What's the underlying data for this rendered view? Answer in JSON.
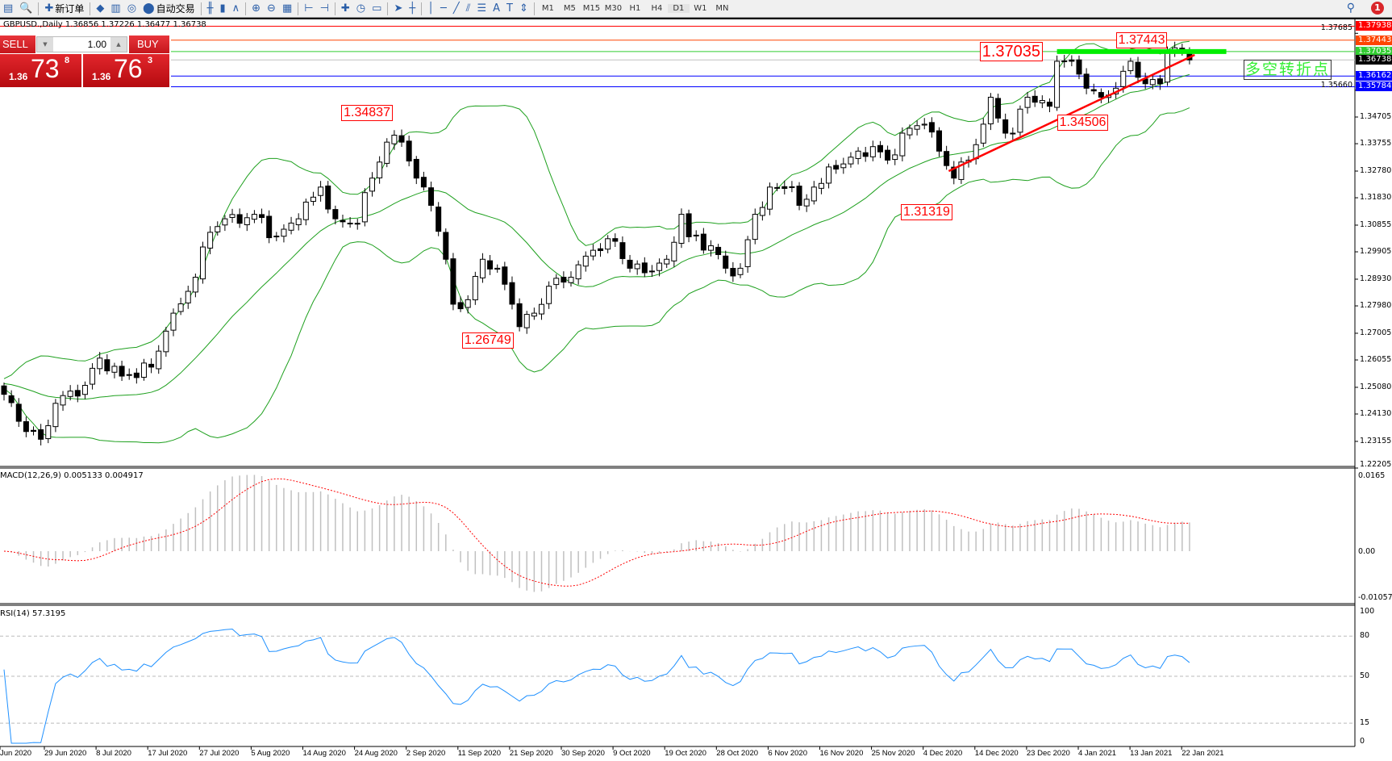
{
  "toolbar": {
    "items": [
      {
        "name": "new-chart",
        "glyph": "▤"
      },
      {
        "name": "navigator",
        "glyph": "🔍"
      },
      {
        "name": "new-order",
        "glyph": "✚",
        "label": "新订单"
      },
      {
        "name": "strategy-tester",
        "glyph": "◆"
      },
      {
        "name": "history-center",
        "glyph": "▥"
      },
      {
        "name": "market-watch",
        "glyph": "◎"
      },
      {
        "name": "auto-trading",
        "glyph": "⬤",
        "label": "自动交易"
      },
      {
        "name": "bar-chart",
        "glyph": "╫"
      },
      {
        "name": "candlesticks",
        "glyph": "▮"
      },
      {
        "name": "line-chart",
        "glyph": "∧"
      },
      {
        "name": "zoom-in",
        "glyph": "⊕"
      },
      {
        "name": "zoom-out",
        "glyph": "⊖"
      },
      {
        "name": "tile-windows",
        "glyph": "▦"
      },
      {
        "name": "auto-scroll",
        "glyph": "⊢"
      },
      {
        "name": "chart-shift",
        "glyph": "⊣"
      },
      {
        "name": "indicators",
        "glyph": "✚"
      },
      {
        "name": "periods",
        "glyph": "◷"
      },
      {
        "name": "templates",
        "glyph": "▭"
      },
      {
        "name": "cursor",
        "glyph": "➤"
      },
      {
        "name": "crosshair",
        "glyph": "┼"
      },
      {
        "name": "vertical-line",
        "glyph": "│"
      },
      {
        "name": "horizontal-line",
        "glyph": "─"
      },
      {
        "name": "trendline",
        "glyph": "╱"
      },
      {
        "name": "equidistant-channel",
        "glyph": "⫽"
      },
      {
        "name": "fibonacci",
        "glyph": "☰"
      },
      {
        "name": "text",
        "glyph": "A"
      },
      {
        "name": "text-label",
        "glyph": "T"
      },
      {
        "name": "arrows",
        "glyph": "⇕"
      }
    ],
    "timeframes": [
      "M1",
      "M5",
      "M15",
      "M30",
      "H1",
      "H4",
      "D1",
      "W1",
      "MN"
    ],
    "active_timeframe": "D1",
    "notifications": "1"
  },
  "chart": {
    "header": "GBPUSD.,Daily  1.36856 1.37226 1.36477 1.36738",
    "trade": {
      "sell": "SELL",
      "buy": "BUY",
      "lot": "1.00",
      "sell_small": "1.36",
      "sell_big": "73",
      "sell_sup": "8",
      "buy_small": "1.36",
      "buy_big": "76",
      "buy_sup": "3"
    },
    "price_ticks": [
      "1.37685",
      "1.35660",
      "1.34705",
      "1.33755",
      "1.32780",
      "1.31830",
      "1.30855",
      "1.29905",
      "1.28930",
      "1.27980",
      "1.27005",
      "1.26055",
      "1.25080",
      "1.24130",
      "1.23155",
      "1.22205"
    ],
    "hlines": [
      {
        "price": "1.37938",
        "color": "#ff0000",
        "full": true
      },
      {
        "price": "1.37443",
        "color": "#ff4500"
      },
      {
        "price": "1.37035",
        "color": "#32cd32"
      },
      {
        "price": "1.36738",
        "color": "#000000",
        "line": "#c0c0c0"
      },
      {
        "price": "1.36162",
        "color": "#0000ff"
      },
      {
        "price": "1.35784",
        "color": "#0000ff"
      }
    ],
    "annotations": [
      {
        "text": "1.34837",
        "bar": 45.8
      },
      {
        "text": "1.26749",
        "bar": 62.2
      },
      {
        "text": "1.31319",
        "bar": 121.8
      },
      {
        "text": "1.34506",
        "bar": 143
      },
      {
        "text": "1.37035",
        "bar": 132.5,
        "big": true
      },
      {
        "text": "1.37443",
        "bar": 151
      }
    ],
    "trendline": {
      "color": "#ff0000",
      "from": {
        "bar": 128.3,
        "price": 1.3278
      },
      "to": {
        "bar": 161.7,
        "price": 1.36918
      }
    },
    "green_level": {
      "color": "#00ee00",
      "from_bar": 143,
      "to_bar": 166,
      "price": 1.37035
    },
    "pivot_text": "多空转折点",
    "bands_color": "#1ea01e",
    "price_waypoints": [
      [
        0,
        1.2483
      ],
      [
        2,
        1.2387
      ],
      [
        5,
        1.2323
      ],
      [
        7,
        1.2451
      ],
      [
        11,
        1.2515
      ],
      [
        13,
        1.2612
      ],
      [
        16,
        1.2548
      ],
      [
        20,
        1.258
      ],
      [
        22,
        1.2708
      ],
      [
        23,
        1.2772
      ],
      [
        26,
        1.29
      ],
      [
        28,
        1.306
      ],
      [
        30,
        1.3108
      ],
      [
        32,
        1.3092
      ],
      [
        34,
        1.3124
      ],
      [
        37,
        1.3044
      ],
      [
        40,
        1.3108
      ],
      [
        43,
        1.3221
      ],
      [
        45,
        1.3108
      ],
      [
        48,
        1.3092
      ],
      [
        50,
        1.3253
      ],
      [
        52,
        1.3381
      ],
      [
        54,
        1.3381
      ],
      [
        56,
        1.3253
      ],
      [
        58,
        1.3156
      ],
      [
        60,
        1.2964
      ],
      [
        61,
        1.2804
      ],
      [
        63,
        1.282
      ],
      [
        65,
        1.2964
      ],
      [
        67,
        1.2932
      ],
      [
        69,
        1.2804
      ],
      [
        70,
        1.2724
      ],
      [
        72,
        1.2772
      ],
      [
        74,
        1.2868
      ],
      [
        77,
        1.29
      ],
      [
        80,
        1.2996
      ],
      [
        83,
        1.3028
      ],
      [
        85,
        1.2932
      ],
      [
        87,
        1.2916
      ],
      [
        90,
        1.2964
      ],
      [
        92,
        1.3124
      ],
      [
        93,
        1.3044
      ],
      [
        96,
        1.3012
      ],
      [
        98,
        1.2932
      ],
      [
        100,
        1.2932
      ],
      [
        102,
        1.3124
      ],
      [
        104,
        1.3221
      ],
      [
        107,
        1.3221
      ],
      [
        108,
        1.3156
      ],
      [
        110,
        1.3221
      ],
      [
        113,
        1.3285
      ],
      [
        116,
        1.3349
      ],
      [
        118,
        1.3365
      ],
      [
        120,
        1.3317
      ],
      [
        122,
        1.3413
      ],
      [
        125,
        1.3445
      ],
      [
        127,
        1.3349
      ],
      [
        129,
        1.3253
      ],
      [
        131,
        1.3317
      ],
      [
        133,
        1.3445
      ],
      [
        134,
        1.3541
      ],
      [
        136,
        1.3413
      ],
      [
        137,
        1.3413
      ],
      [
        139,
        1.3541
      ],
      [
        142,
        1.3509
      ],
      [
        143,
        1.3669
      ],
      [
        145,
        1.3669
      ],
      [
        147,
        1.3573
      ],
      [
        149,
        1.3541
      ],
      [
        151,
        1.3573
      ],
      [
        153,
        1.3669
      ],
      [
        155,
        1.3589
      ],
      [
        157,
        1.3589
      ],
      [
        158,
        1.3701
      ],
      [
        159,
        1.3717
      ],
      [
        161,
        1.36738
      ]
    ]
  },
  "macd": {
    "header": "MACD(12,26,9) 0.005133 0.004917",
    "ticks": [
      "0.0165",
      "0.00",
      "-0.010571"
    ],
    "signal_color": "#ff0000",
    "hist_color": "#c0c0c0"
  },
  "rsi": {
    "header": "RSI(14) 57.3195",
    "ticks": [
      "100",
      "80",
      "50",
      "15",
      "0"
    ],
    "line_color": "#1e90ff"
  },
  "dates": [
    "Jun 2020",
    "29 Jun 2020",
    "8 Jul 2020",
    "17 Jul 2020",
    "27 Jul 2020",
    "5 Aug 2020",
    "14 Aug 2020",
    "24 Aug 2020",
    "2 Sep 2020",
    "11 Sep 2020",
    "21 Sep 2020",
    "30 Sep 2020",
    "9 Oct 2020",
    "19 Oct 2020",
    "28 Oct 2020",
    "6 Nov 2020",
    "16 Nov 2020",
    "25 Nov 2020",
    "4 Dec 2020",
    "14 Dec 2020",
    "23 Dec 2020",
    "4 Jan 2021",
    "13 Jan 2021",
    "22 Jan 2021"
  ]
}
